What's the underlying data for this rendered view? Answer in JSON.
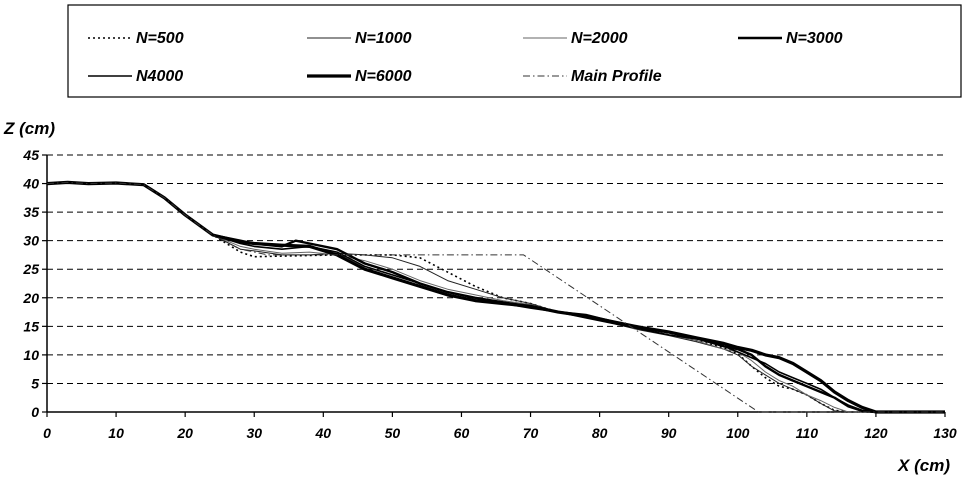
{
  "chart_data": {
    "type": "line",
    "title": "",
    "xlabel": "X  (cm)",
    "ylabel": "Z (cm)",
    "xlim": [
      0,
      130
    ],
    "ylim": [
      0,
      45
    ],
    "x_ticks": [
      0,
      10,
      20,
      30,
      40,
      50,
      60,
      70,
      80,
      90,
      100,
      110,
      120,
      130
    ],
    "y_ticks": [
      0,
      5,
      10,
      15,
      20,
      25,
      30,
      35,
      40,
      45
    ],
    "grid": "horizontal dashed",
    "legend_position": "top",
    "series": [
      {
        "name": "N=500",
        "style": "dotted",
        "points": [
          [
            0,
            40
          ],
          [
            3,
            40.2
          ],
          [
            6,
            40
          ],
          [
            10,
            40.1
          ],
          [
            14,
            39.8
          ],
          [
            17,
            37.5
          ],
          [
            20,
            34.5
          ],
          [
            24,
            31
          ],
          [
            28,
            28
          ],
          [
            30,
            27.2
          ],
          [
            34,
            27.3
          ],
          [
            38,
            27.4
          ],
          [
            42,
            27.5
          ],
          [
            46,
            27.5
          ],
          [
            50,
            27.5
          ],
          [
            54,
            27
          ],
          [
            58,
            24.5
          ],
          [
            62,
            22
          ],
          [
            66,
            20
          ],
          [
            70,
            19
          ],
          [
            74,
            17.5
          ],
          [
            78,
            16.8
          ],
          [
            82,
            15.6
          ],
          [
            86,
            14.5
          ],
          [
            90,
            13.5
          ],
          [
            94,
            12.5
          ],
          [
            98,
            11.2
          ],
          [
            100,
            10.2
          ],
          [
            102,
            8
          ],
          [
            104,
            6
          ],
          [
            106,
            4.5
          ],
          [
            108,
            4
          ],
          [
            110,
            3
          ],
          [
            112,
            1.5
          ],
          [
            114,
            0.3
          ],
          [
            116,
            0
          ],
          [
            130,
            0
          ]
        ]
      },
      {
        "name": "N=1000",
        "style": "thin",
        "points": [
          [
            0,
            40
          ],
          [
            3,
            40.2
          ],
          [
            6,
            40
          ],
          [
            10,
            40.1
          ],
          [
            14,
            39.8
          ],
          [
            17,
            37.5
          ],
          [
            20,
            34.5
          ],
          [
            24,
            31
          ],
          [
            28,
            28.5
          ],
          [
            30,
            28.2
          ],
          [
            34,
            27.5
          ],
          [
            38,
            27.5
          ],
          [
            42,
            27.8
          ],
          [
            46,
            27.5
          ],
          [
            50,
            27
          ],
          [
            54,
            25.5
          ],
          [
            58,
            23
          ],
          [
            62,
            21.5
          ],
          [
            66,
            20
          ],
          [
            70,
            19
          ],
          [
            74,
            17.5
          ],
          [
            78,
            16.8
          ],
          [
            82,
            15.5
          ],
          [
            86,
            14.3
          ],
          [
            90,
            13.4
          ],
          [
            94,
            12.3
          ],
          [
            98,
            11
          ],
          [
            100,
            10
          ],
          [
            102,
            8
          ],
          [
            104,
            6.5
          ],
          [
            106,
            5
          ],
          [
            108,
            4
          ],
          [
            110,
            3
          ],
          [
            112,
            1.5
          ],
          [
            114,
            0.2
          ],
          [
            116,
            0
          ],
          [
            130,
            0
          ]
        ]
      },
      {
        "name": "N=2000",
        "style": "thin-gray",
        "points": [
          [
            0,
            40
          ],
          [
            3,
            40.2
          ],
          [
            6,
            40
          ],
          [
            10,
            40.1
          ],
          [
            14,
            39.8
          ],
          [
            17,
            37.5
          ],
          [
            20,
            34.5
          ],
          [
            24,
            31
          ],
          [
            28,
            29
          ],
          [
            30,
            28.5
          ],
          [
            34,
            27.8
          ],
          [
            38,
            28
          ],
          [
            42,
            27.5
          ],
          [
            46,
            26.5
          ],
          [
            50,
            25
          ],
          [
            54,
            23
          ],
          [
            58,
            21.5
          ],
          [
            62,
            20.5
          ],
          [
            66,
            19.5
          ],
          [
            70,
            18.8
          ],
          [
            74,
            17.5
          ],
          [
            78,
            16.8
          ],
          [
            82,
            15.5
          ],
          [
            86,
            14.5
          ],
          [
            90,
            13.5
          ],
          [
            94,
            12.5
          ],
          [
            98,
            11
          ],
          [
            100,
            10.5
          ],
          [
            102,
            9
          ],
          [
            104,
            7
          ],
          [
            106,
            5.5
          ],
          [
            108,
            4.5
          ],
          [
            110,
            3
          ],
          [
            112,
            2
          ],
          [
            114,
            0.8
          ],
          [
            116,
            0
          ],
          [
            130,
            0
          ]
        ]
      },
      {
        "name": "N=3000",
        "style": "medium",
        "points": [
          [
            0,
            40
          ],
          [
            3,
            40.2
          ],
          [
            6,
            40
          ],
          [
            10,
            40.1
          ],
          [
            14,
            39.8
          ],
          [
            17,
            37.5
          ],
          [
            20,
            34.5
          ],
          [
            24,
            31
          ],
          [
            28,
            30
          ],
          [
            30,
            29.5
          ],
          [
            34,
            29
          ],
          [
            36,
            30
          ],
          [
            38,
            29.5
          ],
          [
            42,
            28.5
          ],
          [
            46,
            26
          ],
          [
            50,
            24.5
          ],
          [
            54,
            22.5
          ],
          [
            58,
            21
          ],
          [
            62,
            20
          ],
          [
            66,
            19.2
          ],
          [
            70,
            18.5
          ],
          [
            74,
            17.5
          ],
          [
            78,
            17
          ],
          [
            82,
            15.8
          ],
          [
            86,
            14.8
          ],
          [
            90,
            14
          ],
          [
            94,
            13
          ],
          [
            98,
            11.5
          ],
          [
            100,
            11
          ],
          [
            102,
            10
          ],
          [
            104,
            8
          ],
          [
            106,
            6.5
          ],
          [
            108,
            5.5
          ],
          [
            110,
            4.5
          ],
          [
            112,
            3.5
          ],
          [
            114,
            2.5
          ],
          [
            116,
            1
          ],
          [
            118,
            0.2
          ],
          [
            120,
            0
          ],
          [
            130,
            0
          ]
        ]
      },
      {
        "name": "N4000",
        "style": "medium-thin",
        "points": [
          [
            0,
            40
          ],
          [
            3,
            40.2
          ],
          [
            6,
            40
          ],
          [
            10,
            40.1
          ],
          [
            14,
            39.8
          ],
          [
            17,
            37.5
          ],
          [
            20,
            34.5
          ],
          [
            24,
            31
          ],
          [
            28,
            29.5
          ],
          [
            30,
            29
          ],
          [
            34,
            28.5
          ],
          [
            38,
            29
          ],
          [
            42,
            28
          ],
          [
            46,
            25.5
          ],
          [
            50,
            24
          ],
          [
            54,
            22.5
          ],
          [
            58,
            21
          ],
          [
            62,
            20
          ],
          [
            66,
            19
          ],
          [
            70,
            18.2
          ],
          [
            74,
            17.5
          ],
          [
            78,
            16.5
          ],
          [
            82,
            15.5
          ],
          [
            86,
            14.5
          ],
          [
            90,
            13.5
          ],
          [
            94,
            12.8
          ],
          [
            98,
            11.5
          ],
          [
            100,
            10.5
          ],
          [
            102,
            9.5
          ],
          [
            104,
            8.5
          ],
          [
            106,
            7
          ],
          [
            108,
            6
          ],
          [
            110,
            5
          ],
          [
            112,
            4
          ],
          [
            114,
            2.5
          ],
          [
            116,
            1.2
          ],
          [
            118,
            0.3
          ],
          [
            120,
            0
          ],
          [
            130,
            0
          ]
        ]
      },
      {
        "name": "N=6000",
        "style": "thick",
        "points": [
          [
            0,
            40
          ],
          [
            3,
            40.2
          ],
          [
            6,
            40
          ],
          [
            10,
            40.1
          ],
          [
            14,
            39.8
          ],
          [
            17,
            37.5
          ],
          [
            20,
            34.5
          ],
          [
            24,
            31
          ],
          [
            28,
            29.8
          ],
          [
            30,
            29.5
          ],
          [
            34,
            29.2
          ],
          [
            38,
            29
          ],
          [
            42,
            27.5
          ],
          [
            46,
            25
          ],
          [
            50,
            23.5
          ],
          [
            54,
            22
          ],
          [
            58,
            20.5
          ],
          [
            62,
            19.5
          ],
          [
            66,
            19
          ],
          [
            70,
            18.5
          ],
          [
            74,
            17.5
          ],
          [
            78,
            16.8
          ],
          [
            82,
            15.8
          ],
          [
            86,
            14.8
          ],
          [
            90,
            14
          ],
          [
            94,
            13
          ],
          [
            98,
            12
          ],
          [
            100,
            11.3
          ],
          [
            102,
            10.8
          ],
          [
            104,
            10
          ],
          [
            106,
            9.5
          ],
          [
            108,
            8.5
          ],
          [
            110,
            7
          ],
          [
            112,
            5.5
          ],
          [
            114,
            3.5
          ],
          [
            116,
            2
          ],
          [
            118,
            0.8
          ],
          [
            120,
            0
          ],
          [
            130,
            0
          ]
        ]
      },
      {
        "name": "Main Profile",
        "style": "dash-dot",
        "points": [
          [
            0,
            40
          ],
          [
            3,
            40.2
          ],
          [
            6,
            40
          ],
          [
            10,
            40.1
          ],
          [
            14,
            39.8
          ],
          [
            17,
            37.5
          ],
          [
            20,
            34.5
          ],
          [
            24,
            31
          ],
          [
            28,
            28.5
          ],
          [
            32,
            27.5
          ],
          [
            36,
            27.5
          ],
          [
            40,
            27.5
          ],
          [
            69,
            27.5
          ],
          [
            103,
            0
          ],
          [
            130,
            0
          ]
        ]
      }
    ]
  }
}
